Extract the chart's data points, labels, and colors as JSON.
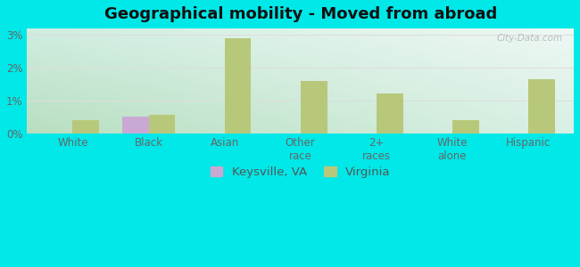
{
  "title": "Geographical mobility - Moved from abroad",
  "categories": [
    "White",
    "Black",
    "Asian",
    "Other\nrace",
    "2+\nraces",
    "White\nalone",
    "Hispanic"
  ],
  "keysville_values": [
    0,
    0.5,
    0,
    0,
    0,
    0,
    0
  ],
  "virginia_values": [
    0.4,
    0.55,
    2.9,
    1.6,
    1.2,
    0.4,
    1.65
  ],
  "keysville_color": "#c9a8d4",
  "virginia_color": "#b8c87a",
  "bar_width": 0.35,
  "ylim": [
    0,
    3.2
  ],
  "yticks": [
    0,
    1,
    2,
    3
  ],
  "yticklabels": [
    "0%",
    "1%",
    "2%",
    "3%"
  ],
  "grid_color": "#dddddd",
  "title_fontsize": 13,
  "tick_fontsize": 8.5,
  "legend_fontsize": 9.5,
  "watermark": "City-Data.com",
  "outer_bg": "#00e8e8",
  "grad_color_topleft": "#d0ede0",
  "grad_color_topright": "#e8f4f0",
  "grad_color_bottomleft": "#c8e8c8",
  "grad_color_bottomright": "#dff0e8"
}
